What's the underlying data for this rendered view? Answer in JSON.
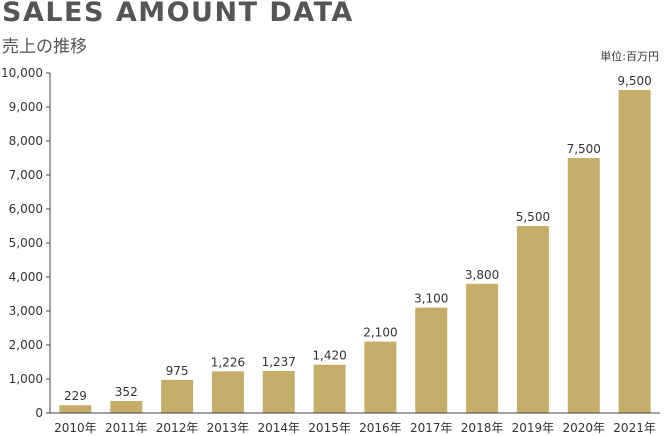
{
  "header": {
    "title": "SALES AMOUNT DATA",
    "subtitle": "売上の推移",
    "unit": "単位:百万円"
  },
  "colors": {
    "bar": "#c5ae6a",
    "axis": "#444444",
    "text": "#333333"
  },
  "chart_data": {
    "type": "bar",
    "title": "SALES AMOUNT DATA",
    "subtitle": "売上の推移",
    "unit": "単位:百万円",
    "categories": [
      "2010年",
      "2011年",
      "2012年",
      "2013年",
      "2014年",
      "2015年",
      "2016年",
      "2017年",
      "2018年",
      "2019年",
      "2020年",
      "2021年"
    ],
    "values": [
      229,
      352,
      975,
      1226,
      1237,
      1420,
      2100,
      3100,
      3800,
      5500,
      7500,
      9500
    ],
    "value_labels": [
      "229",
      "352",
      "975",
      "1,226",
      "1,237",
      "1,420",
      "2,100",
      "3,100",
      "3,800",
      "5,500",
      "7,500",
      "9,500"
    ],
    "ylim": [
      0,
      10000
    ],
    "yticks": [
      0,
      1000,
      2000,
      3000,
      4000,
      5000,
      6000,
      7000,
      8000,
      9000,
      10000
    ],
    "ytick_labels": [
      "0",
      "1,000",
      "2,000",
      "3,000",
      "4,000",
      "5,000",
      "6,000",
      "7,000",
      "8,000",
      "9,000",
      "10,000"
    ],
    "grid": false,
    "legend": "none"
  }
}
